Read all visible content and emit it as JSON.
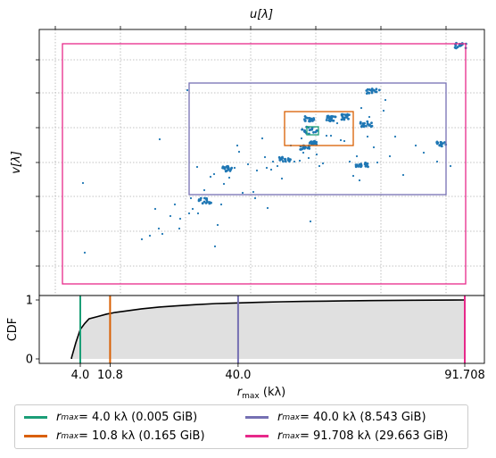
{
  "chart_data": [
    {
      "type": "scatter",
      "title": "",
      "xlabel_top": "u[λ]",
      "ylabel": "v[λ]",
      "description_marks": "uv coverage points",
      "point_color": "#1f77b4",
      "grid": true,
      "boxes": [
        {
          "label": "r_max = 4.0 kλ",
          "color": "#1b9e77"
        },
        {
          "label": "r_max = 10.8 kλ",
          "color": "#d95f02"
        },
        {
          "label": "r_max = 40.0 kλ",
          "color": "#7570b3"
        },
        {
          "label": "r_max = 91.708 kλ",
          "color": "#e7298a"
        }
      ]
    },
    {
      "type": "line",
      "ylabel": "CDF",
      "xlabel": "r_max (kλ)",
      "xlim": [
        0,
        97
      ],
      "ylim": [
        0,
        1
      ],
      "yticks": [
        "0",
        "1"
      ],
      "xticks": [
        "4.0",
        "10.8",
        "40.0",
        "91.708"
      ],
      "xtick_values": [
        4.0,
        10.8,
        40.0,
        91.708
      ],
      "fill_color": "#e0e0e0",
      "line_color": "#000000",
      "cdf_x": [
        2,
        3,
        4,
        5,
        6,
        8,
        10,
        12,
        15,
        18,
        22,
        26,
        30,
        35,
        40,
        45,
        50,
        55,
        60,
        70,
        80,
        91.708
      ],
      "cdf_y": [
        0.02,
        0.28,
        0.5,
        0.6,
        0.68,
        0.72,
        0.76,
        0.79,
        0.82,
        0.85,
        0.88,
        0.9,
        0.92,
        0.94,
        0.95,
        0.96,
        0.97,
        0.975,
        0.98,
        0.99,
        0.995,
        1.0
      ]
    }
  ],
  "legend": [
    {
      "var": "r",
      "sub": "max",
      "text": " = 4.0 kλ (0.005 GiB)",
      "color": "#1b9e77"
    },
    {
      "var": "r",
      "sub": "max",
      "text": " = 10.8 kλ (0.165 GiB)",
      "color": "#d95f02"
    },
    {
      "var": "r",
      "sub": "max",
      "text": " = 40.0 kλ (8.543 GiB)",
      "color": "#7570b3"
    },
    {
      "var": "r",
      "sub": "max",
      "text": " = 91.708 kλ (29.663 GiB)",
      "color": "#e7298a"
    }
  ],
  "labels": {
    "top_xlabel": "u[λ]",
    "left_ylabel": "v[λ]",
    "cdf_ylabel": "CDF",
    "bottom_xlabel_var": "r",
    "bottom_xlabel_sub": "max",
    "bottom_xlabel_unit": " (kλ)"
  }
}
